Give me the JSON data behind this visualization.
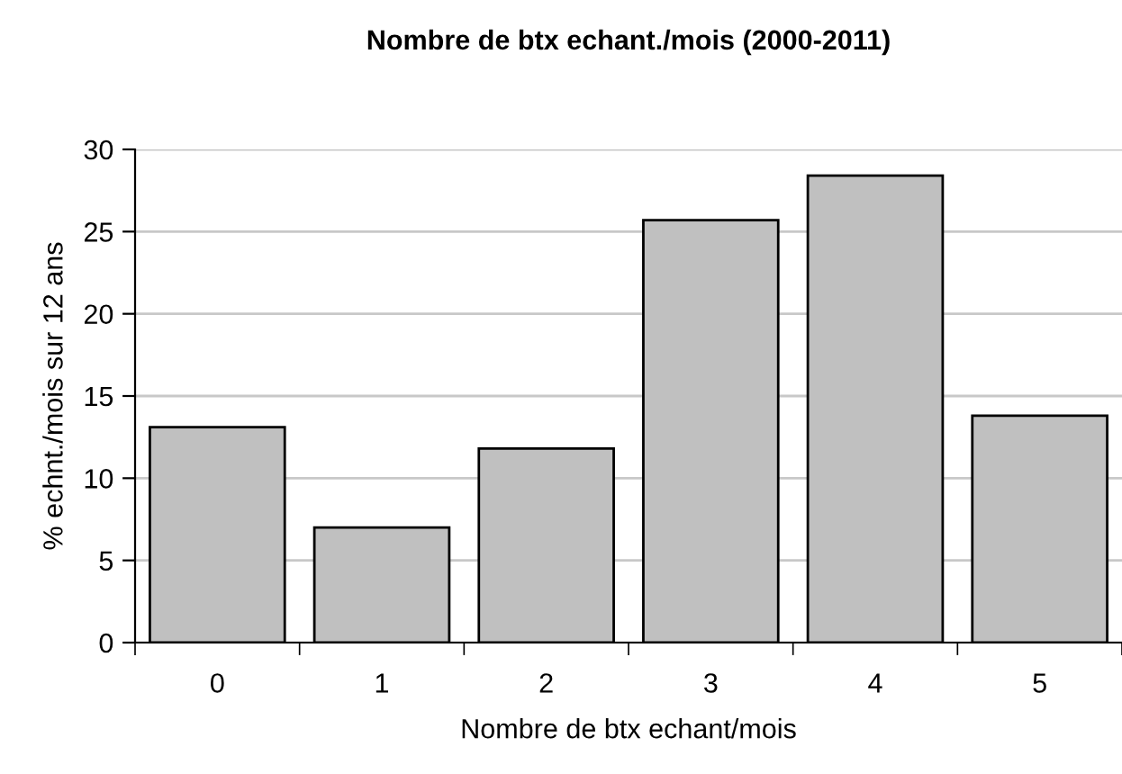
{
  "chart_data": {
    "type": "bar",
    "title": "Nombre de btx echant./mois (2000-2011)",
    "xlabel": "Nombre de btx echant/mois",
    "ylabel": "% echnt./mois sur 12 ans",
    "categories": [
      "0",
      "1",
      "2",
      "3",
      "4",
      "5"
    ],
    "values": [
      13.1,
      7.0,
      11.8,
      25.7,
      28.4,
      13.8
    ],
    "color": "#c0c0c0",
    "ylim": [
      0,
      30
    ],
    "yticks": [
      0,
      5,
      10,
      15,
      20,
      25,
      30
    ],
    "grid": "y",
    "legend": false
  }
}
